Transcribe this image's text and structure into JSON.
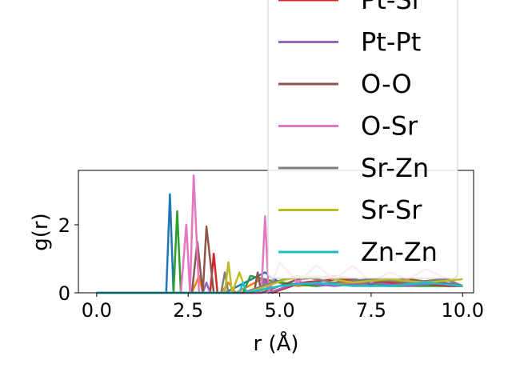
{
  "chart_data": {
    "type": "line",
    "xlabel": "r (Å)",
    "ylabel": "g(r)",
    "xlim": [
      -0.5,
      10.3
    ],
    "ylim": [
      0,
      3.6
    ],
    "xticks": [
      "0.0",
      "2.5",
      "5.0",
      "7.5",
      "10.0"
    ],
    "xtick_values": [
      0,
      2.5,
      5,
      7.5,
      10
    ],
    "yticks": [
      "0",
      "2"
    ],
    "ytick_values": [
      0,
      2
    ],
    "grid": false,
    "legend_position": "upper-right",
    "series": [
      {
        "name": "",
        "color": "#1f77b4",
        "x": [
          0,
          1.9,
          2.0,
          2.1,
          2.2,
          3.5,
          4.6,
          5.0,
          6.0,
          7.0,
          8.0,
          9.0,
          10.0
        ],
        "y": [
          0,
          0,
          2.9,
          0,
          0,
          0,
          0.6,
          0.3,
          0.2,
          0.3,
          0.2,
          0.3,
          0.2
        ]
      },
      {
        "name": "",
        "color": "#ff7f0e",
        "x": [
          0,
          2.6,
          2.8,
          2.9,
          3.4,
          3.6,
          3.8,
          4.5,
          5.5,
          6.5,
          7.5,
          8.5,
          10.0
        ],
        "y": [
          0,
          0,
          0.5,
          0,
          0,
          0.3,
          0,
          0.4,
          0.2,
          0.3,
          0.2,
          0.3,
          0.2
        ]
      },
      {
        "name": "",
        "color": "#2ca02c",
        "x": [
          0,
          2.1,
          2.2,
          2.3,
          3.0,
          4.0,
          4.2,
          5.0,
          6.0,
          7.0,
          8.0,
          9.0,
          10.0
        ],
        "y": [
          0,
          0,
          2.4,
          0,
          0,
          0,
          0.5,
          0.3,
          0.2,
          0.4,
          0.2,
          0.2,
          0.2
        ]
      },
      {
        "name": "Pt-Sr",
        "color": "#d62728",
        "x": [
          0,
          3.1,
          3.2,
          3.3,
          4.4,
          4.6,
          4.8,
          5.6,
          6.6,
          7.6,
          8.6,
          9.6,
          10.0
        ],
        "y": [
          0,
          0,
          1.15,
          0,
          0,
          0.4,
          0,
          0.3,
          0.4,
          0.3,
          0.3,
          0.2,
          0.2
        ]
      },
      {
        "name": "Pt-Pt",
        "color": "#9467bd",
        "x": [
          0,
          2.9,
          3.0,
          3.1,
          4.5,
          4.6,
          4.7,
          5.5,
          6.5,
          7.5,
          8.5,
          9.5,
          10.0
        ],
        "y": [
          0,
          0,
          0.3,
          0,
          0,
          0.4,
          0,
          0.3,
          0.2,
          0.3,
          0.2,
          0.3,
          0.2
        ]
      },
      {
        "name": "O-O",
        "color": "#8c564b",
        "x": [
          0,
          2.6,
          2.75,
          2.9,
          3.0,
          3.2,
          3.5,
          4.3,
          4.4,
          4.5,
          5.5,
          6.5,
          7.5,
          8.5,
          10.0
        ],
        "y": [
          0,
          0,
          1.5,
          0,
          1.95,
          0,
          0,
          0,
          0.6,
          0,
          0.4,
          0.5,
          0.3,
          0.4,
          0.2
        ]
      },
      {
        "name": "O-Sr",
        "color": "#e377c2",
        "x": [
          0,
          2.3,
          2.45,
          2.55,
          2.65,
          2.8,
          4.5,
          4.6,
          4.7,
          5.0,
          5.5,
          6.0,
          6.5,
          7.0,
          7.5,
          8.0,
          8.5,
          9.0,
          10.0
        ],
        "y": [
          0,
          0,
          2.0,
          0,
          3.45,
          0,
          0,
          2.25,
          0,
          0.9,
          0.3,
          0.8,
          0.4,
          0.8,
          0.3,
          0.6,
          0.4,
          0.7,
          0.2
        ]
      },
      {
        "name": "Sr-Zn",
        "color": "#7f7f7f",
        "x": [
          0,
          3.4,
          3.5,
          3.6,
          4.0,
          4.8,
          5.5,
          6.5,
          7.5,
          8.5,
          9.5,
          10.0
        ],
        "y": [
          0,
          0,
          0.6,
          0,
          0,
          0.3,
          0.5,
          0.3,
          0.4,
          0.3,
          0.4,
          0.2
        ]
      },
      {
        "name": "Sr-Sr",
        "color": "#bcbd22",
        "x": [
          0,
          3.5,
          3.6,
          3.7,
          3.9,
          4.1,
          5.2,
          6.0,
          7.0,
          8.0,
          9.0,
          10.0
        ],
        "y": [
          0,
          0,
          0.9,
          0,
          0.6,
          0,
          0.4,
          0.5,
          0.3,
          0.4,
          0.3,
          0.4
        ]
      },
      {
        "name": "Zn-Zn",
        "color": "#17becf",
        "x": [
          0,
          3.9,
          4.0,
          4.1,
          5.0,
          6.0,
          7.0,
          8.0,
          9.0,
          10.0
        ],
        "y": [
          0,
          0,
          0.3,
          0,
          0.2,
          0.3,
          0.2,
          0.2,
          0.3,
          0.2
        ]
      }
    ]
  }
}
